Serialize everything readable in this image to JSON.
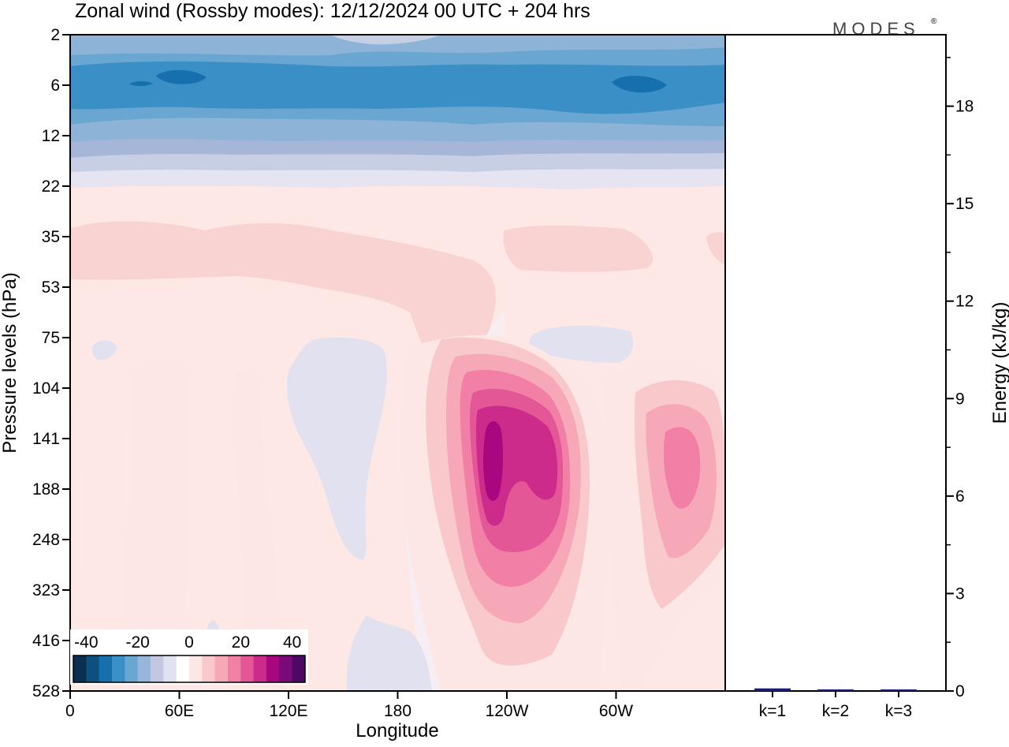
{
  "title": "Zonal wind (Rossby modes):  12/12/2024  00 UTC  + 204 hrs",
  "logo": "MODES",
  "logo_mark": "®",
  "colors": {
    "neg_strong": "#1b4f72",
    "neg_mid": "#3a8fc7",
    "neg_light": "#8db3d6",
    "neg_faint": "#c6cfe4",
    "near_zero_neg": "#e4e2ef",
    "near_zero_pos": "#f6eef3",
    "pos_faint": "#fde8e6",
    "pos_light": "#f9d2d2",
    "pos_mid1": "#f7b8be",
    "pos_mid2": "#f590a8",
    "pos_strong1": "#d9338f",
    "pos_strong2": "#a8077f",
    "energy_bar": "#1a1a8c"
  },
  "chart_data": [
    {
      "type": "heatmap",
      "title": "Zonal wind (Rossby modes):  12/12/2024  00 UTC  + 204 hrs",
      "xlabel": "Longitude",
      "ylabel": "Pressure levels (hPa)",
      "x_ticks": [
        "0",
        "60E",
        "120E",
        "180",
        "120W",
        "60W"
      ],
      "x_tick_degrees": [
        0,
        60,
        120,
        180,
        240,
        300
      ],
      "xlim": [
        0,
        360
      ],
      "y_ticks": [
        "2",
        "6",
        "12",
        "22",
        "35",
        "53",
        "75",
        "104",
        "141",
        "188",
        "248",
        "323",
        "416",
        "528"
      ],
      "colorbar": {
        "ticks": [
          "-40",
          "-20",
          "0",
          "20",
          "40"
        ],
        "tick_values": [
          -40,
          -20,
          0,
          20,
          40
        ],
        "range": [
          -45,
          45
        ],
        "colors": [
          "#0b2f4e",
          "#0e4f80",
          "#1670ad",
          "#3a8fc7",
          "#6aa6d2",
          "#98b6da",
          "#c2c8e2",
          "#e2e1ef",
          "#ffffff",
          "#fde6e6",
          "#f9c8cb",
          "#f6a8b8",
          "#f27fa6",
          "#e45796",
          "#cc2b8c",
          "#a8077f",
          "#7a0a78",
          "#4d0866"
        ]
      },
      "features": [
        {
          "kind": "band",
          "level": "6",
          "u": -25,
          "x_range": [
            0,
            360
          ]
        },
        {
          "kind": "jet_core",
          "level": "141",
          "lon": 237,
          "u_max": 30
        },
        {
          "kind": "jet_core",
          "level": "141",
          "lon": 335,
          "u_max": 15
        },
        {
          "kind": "jet_core",
          "level": "141",
          "lon": 52,
          "u_max": 6
        }
      ]
    },
    {
      "type": "bar",
      "ylabel": "Energy (kJ/kg)",
      "categories": [
        "k=1",
        "k=2",
        "k=3"
      ],
      "values": [
        0.08,
        0.04,
        0.02
      ],
      "ylim": [
        0,
        20.2
      ],
      "y_ticks": [
        0,
        3,
        6,
        9,
        12,
        15,
        18
      ]
    }
  ]
}
